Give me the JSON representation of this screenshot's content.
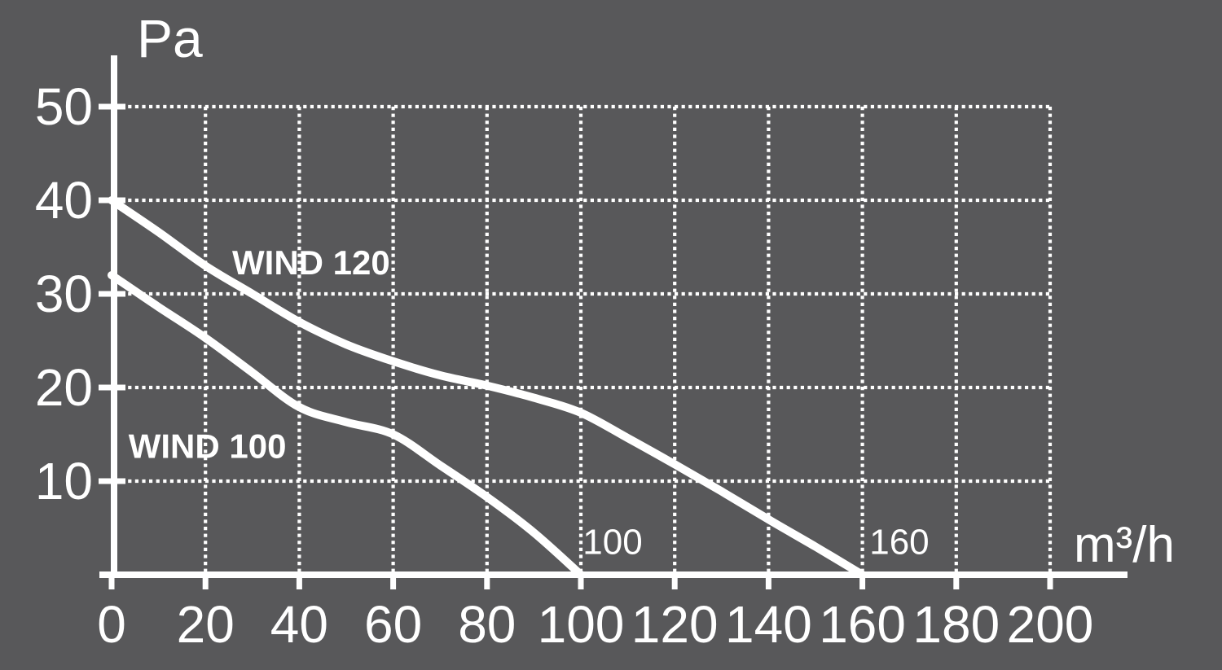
{
  "colors": {
    "background": "#58585a",
    "foreground": "#ffffff"
  },
  "chart_data": {
    "type": "line",
    "title": "",
    "ylabel": "Pa",
    "xlabel": "m³/h",
    "xlim": [
      0,
      200
    ],
    "ylim": [
      0,
      50
    ],
    "x_ticks": [
      0,
      20,
      40,
      60,
      80,
      100,
      120,
      140,
      160,
      180,
      200
    ],
    "y_ticks": [
      10,
      20,
      30,
      40,
      50
    ],
    "grid": "dotted",
    "legend_position": "labels-next-to-curves",
    "series": [
      {
        "name": "WIND 120",
        "points": [
          [
            0,
            40
          ],
          [
            10,
            36.6
          ],
          [
            20,
            33
          ],
          [
            30,
            30
          ],
          [
            40,
            27
          ],
          [
            50,
            24.6
          ],
          [
            60,
            22.8
          ],
          [
            70,
            21.3
          ],
          [
            80,
            20.2
          ],
          [
            90,
            18.9
          ],
          [
            100,
            17.3
          ],
          [
            110,
            14.6
          ],
          [
            120,
            11.8
          ],
          [
            130,
            8.9
          ],
          [
            140,
            5.9
          ],
          [
            150,
            3
          ],
          [
            160,
            0
          ]
        ],
        "label_pos": [
          25.7,
          32.1
        ],
        "end_annotation": {
          "text": "160",
          "pos": [
            161.5,
            2.2
          ]
        },
        "max_flow": 160,
        "max_pressure": 40
      },
      {
        "name": "WIND 100",
        "points": [
          [
            0,
            32
          ],
          [
            10,
            28.6
          ],
          [
            20,
            25.3
          ],
          [
            30,
            21.6
          ],
          [
            40,
            17.9
          ],
          [
            50,
            16.3
          ],
          [
            60,
            15
          ],
          [
            70,
            11.7
          ],
          [
            80,
            8.3
          ],
          [
            90,
            4.5
          ],
          [
            100,
            0
          ]
        ],
        "label_pos": [
          3.6,
          12.5
        ],
        "end_annotation": {
          "text": "100",
          "pos": [
            100.4,
            2.2
          ]
        },
        "max_flow": 100,
        "max_pressure": 32
      }
    ]
  }
}
